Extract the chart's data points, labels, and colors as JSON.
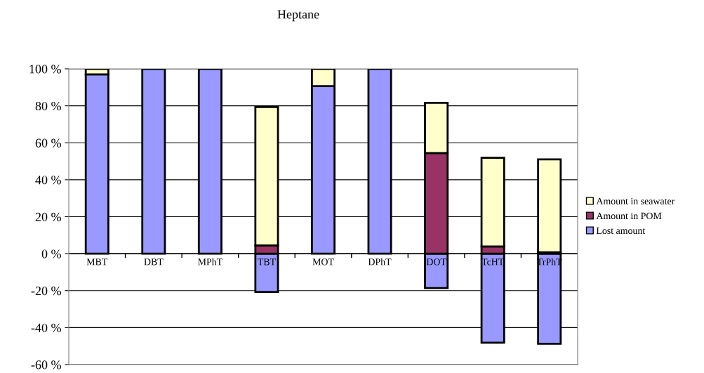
{
  "chart_data": {
    "type": "bar",
    "title": "Heptane",
    "stacked": true,
    "categories": [
      "MBT",
      "DBT",
      "MPhT",
      "TBT",
      "MOT",
      "DPhT",
      "DOT",
      "TcHT",
      "TrPhT"
    ],
    "series": [
      {
        "name": "Lost amount",
        "color": "#9999ff",
        "values": [
          97,
          100,
          100,
          -20.7,
          90.6,
          100,
          -18.6,
          -48.2,
          -48.7
        ]
      },
      {
        "name": "Amount in POM",
        "color": "#993366",
        "values": [
          0,
          0,
          0,
          4.5,
          0,
          0,
          54.4,
          3.9,
          0.8
        ]
      },
      {
        "name": "Amount in seawater",
        "color": "#ffffcc",
        "values": [
          3,
          0,
          0,
          74.8,
          9.4,
          0,
          27.2,
          48,
          50.2
        ]
      }
    ],
    "ylim": [
      -60,
      100
    ],
    "yticks": [
      {
        "value": -60,
        "label": "-60 %"
      },
      {
        "value": -40,
        "label": "-40 %"
      },
      {
        "value": -20,
        "label": "-20 %"
      },
      {
        "value": 0,
        "label": "0 %"
      },
      {
        "value": 20,
        "label": "20 %"
      },
      {
        "value": 40,
        "label": "40 %"
      },
      {
        "value": 60,
        "label": "60 %"
      },
      {
        "value": 80,
        "label": "80 %"
      },
      {
        "value": 100,
        "label": "100 %"
      }
    ],
    "grid": "y",
    "legend": "right"
  }
}
